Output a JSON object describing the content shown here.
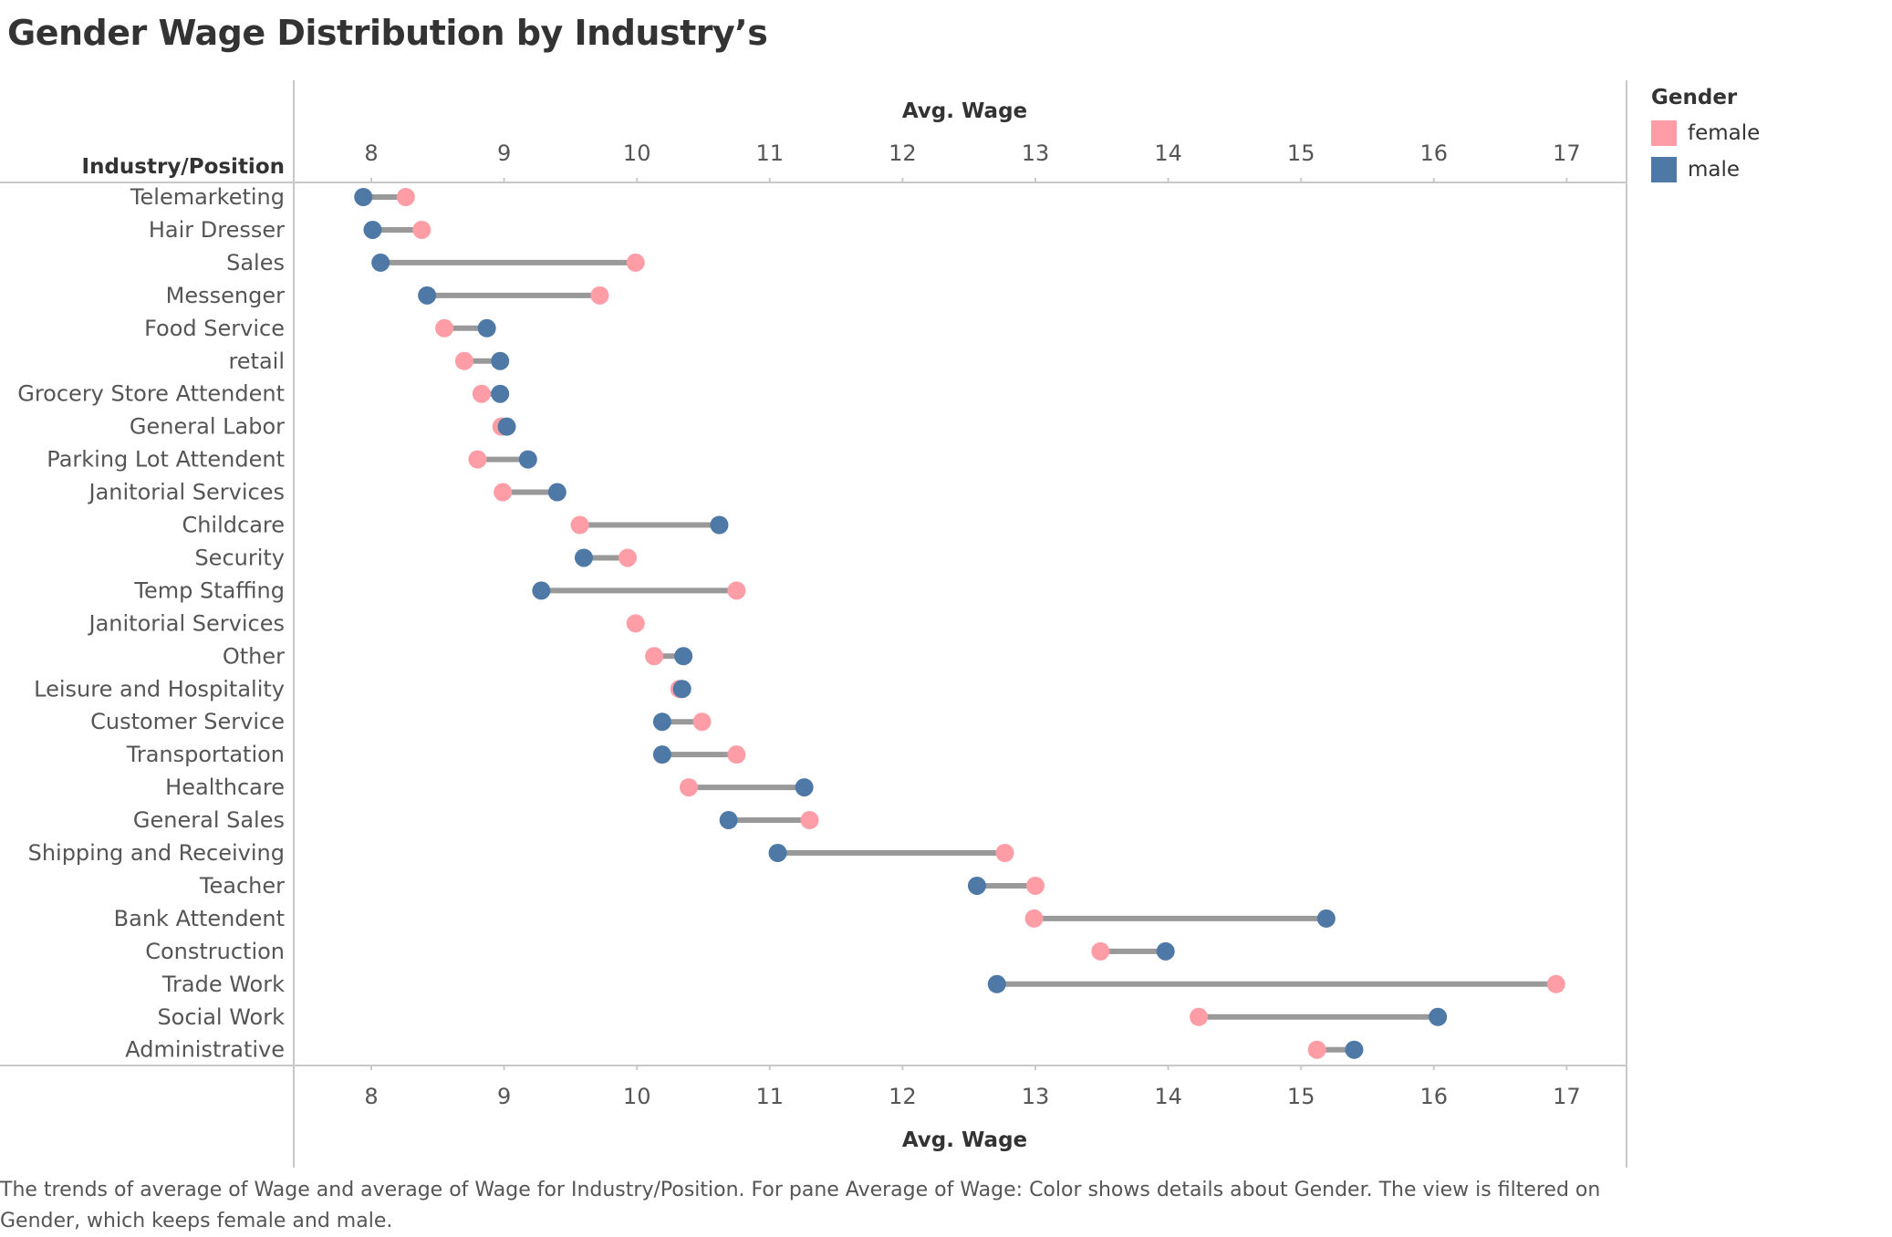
{
  "title": "Gender Wage Distribution by Industry’s",
  "colors": {
    "female": "#ff9da7",
    "male": "#4e79a7",
    "connector": "#999999"
  },
  "legend": {
    "title": "Gender",
    "items": [
      {
        "label": "female",
        "color": "#ff9da7"
      },
      {
        "label": "male",
        "color": "#4e79a7"
      }
    ]
  },
  "caption": "The trends of average of Wage and average of Wage for Industry/Position.  For pane Average of Wage:  Color shows details about Gender. The view is filtered on Gender, which keeps female and male.",
  "chart_data": {
    "type": "scatter",
    "title": "Gender Wage Distribution by Industry’s",
    "xlabel": "Avg. Wage",
    "ylabel": "Industry/Position",
    "xlim": [
      7.43,
      17.43
    ],
    "xticks": [
      8,
      9,
      10,
      11,
      12,
      13,
      14,
      15,
      16,
      17
    ],
    "legend_position": "right",
    "grid": false,
    "categories": [
      "Telemarketing",
      "Hair Dresser",
      "Sales",
      "Messenger",
      "Food Service",
      "retail",
      "Grocery Store Attendent",
      "General Labor",
      "Parking Lot Attendent",
      "Janitorial Services",
      "Childcare",
      "Security",
      "Temp Staffing",
      "Janitorial Services",
      "Other",
      "Leisure and Hospitality",
      "Customer Service",
      "Transportation",
      "Healthcare",
      "General Sales",
      "Shipping and Receiving",
      "Teacher",
      "Bank Attendent",
      "Construction",
      "Trade Work",
      "Social Work",
      "Administrative"
    ],
    "series": [
      {
        "name": "female",
        "values": [
          8.26,
          8.38,
          9.99,
          9.72,
          8.55,
          8.7,
          8.83,
          8.98,
          8.8,
          8.99,
          9.57,
          9.93,
          10.75,
          9.99,
          10.13,
          10.32,
          10.49,
          10.75,
          10.39,
          11.3,
          12.77,
          13.0,
          12.99,
          13.49,
          16.92,
          14.23,
          15.12
        ]
      },
      {
        "name": "male",
        "values": [
          7.94,
          8.01,
          8.07,
          8.42,
          8.87,
          8.97,
          8.97,
          9.02,
          9.18,
          9.4,
          10.62,
          9.6,
          9.28,
          null,
          10.35,
          10.34,
          10.19,
          10.19,
          11.26,
          10.69,
          11.06,
          12.56,
          15.19,
          13.98,
          12.71,
          16.03,
          15.4
        ]
      }
    ]
  }
}
